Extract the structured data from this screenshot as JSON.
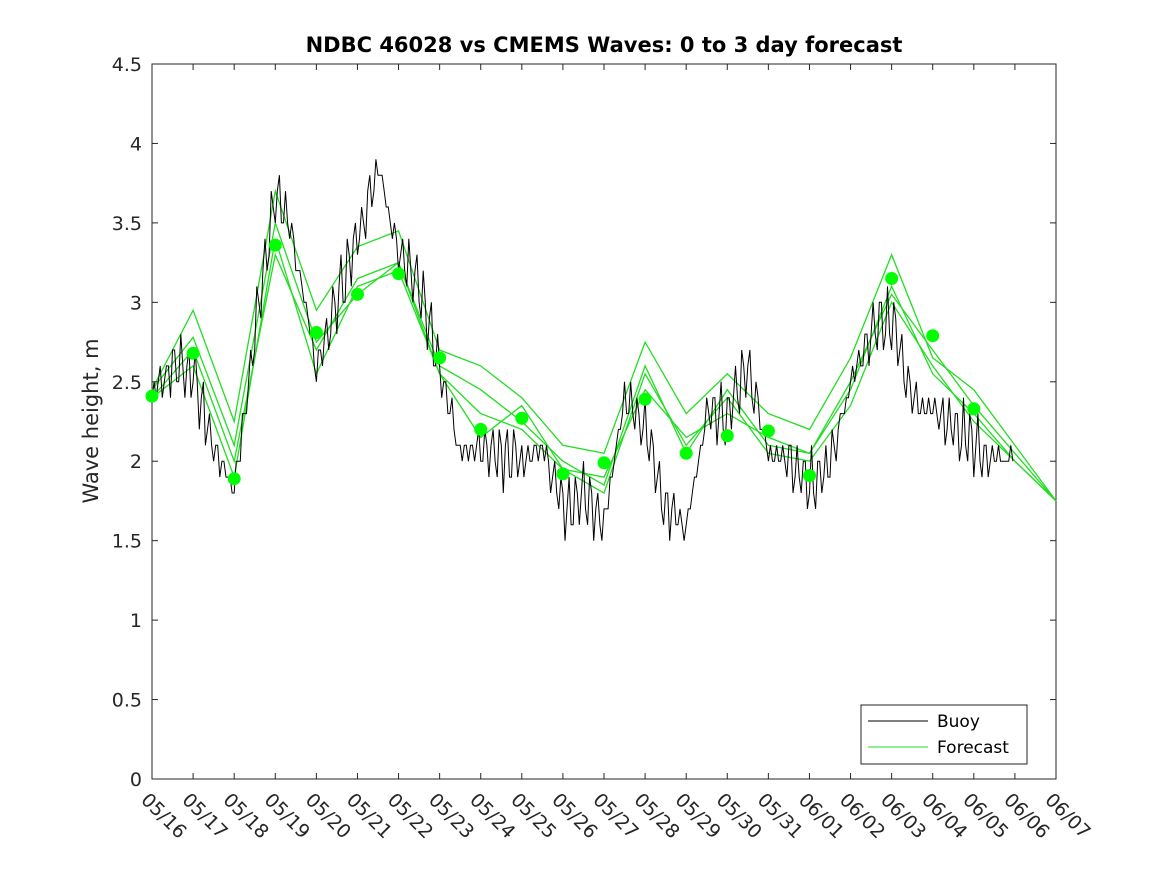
{
  "chart_data": {
    "type": "line",
    "title": "NDBC 46028 vs CMEMS Waves: 0 to 3 day forecast",
    "xlabel": "",
    "ylabel": "Wave height, m",
    "ylim": [
      0,
      4.5
    ],
    "yticks": [
      0,
      0.5,
      1,
      1.5,
      2,
      2.5,
      3,
      3.5,
      4,
      4.5
    ],
    "ytick_labels": [
      "0",
      "0.5",
      "1",
      "1.5",
      "2",
      "2.5",
      "3",
      "3.5",
      "4",
      "4.5"
    ],
    "xlim_days": [
      0,
      22
    ],
    "xtick_labels": [
      "05/16",
      "05/17",
      "05/18",
      "05/19",
      "05/20",
      "05/21",
      "05/22",
      "05/23",
      "05/24",
      "05/25",
      "05/26",
      "05/27",
      "05/28",
      "05/29",
      "05/30",
      "05/31",
      "06/01",
      "06/02",
      "06/03",
      "06/04",
      "06/05",
      "06/06",
      "06/07"
    ],
    "legend": {
      "position": "bottom-right",
      "entries": [
        {
          "name": "Buoy",
          "color": "#000000"
        },
        {
          "name": "Forecast",
          "color": "#00ff00"
        }
      ]
    },
    "colors": {
      "buoy": "#000000",
      "forecast": "#00ff00",
      "forecast_line": "#22dd22"
    },
    "buoy": {
      "name": "Buoy",
      "x": [
        0,
        0.5,
        1,
        1.5,
        2,
        2.5,
        3,
        3.25,
        3.5,
        4,
        4.5,
        5,
        5.5,
        6,
        6.5,
        7,
        7.5,
        8,
        8.5,
        9,
        9.5,
        10,
        10.5,
        11,
        11.5,
        12,
        12.5,
        13,
        13.5,
        14,
        14.5,
        15,
        15.5,
        16,
        16.5,
        17,
        17.5,
        18,
        18.5,
        19,
        19.5,
        20,
        20.5,
        21
      ],
      "y": [
        2.4,
        2.6,
        2.55,
        2.1,
        1.8,
        2.8,
        3.7,
        3.6,
        3.3,
        2.6,
        3.0,
        3.4,
        3.85,
        3.3,
        3.1,
        2.6,
        2.05,
        2.1,
        2.05,
        2.0,
        2.1,
        1.7,
        1.8,
        1.6,
        2.4,
        2.2,
        1.7,
        1.6,
        2.3,
        2.3,
        2.6,
        2.05,
        2.0,
        1.85,
        2.0,
        2.5,
        2.8,
        2.9,
        2.4,
        2.3,
        2.25,
        2.1,
        2.0,
        2.0
      ]
    },
    "forecast_runs": [
      {
        "name": "Forecast",
        "x": [
          0,
          1,
          2,
          3,
          4,
          5,
          6,
          7,
          8,
          9,
          10,
          11,
          12,
          13,
          14,
          15,
          16,
          17,
          18,
          19,
          20,
          21,
          22
        ],
        "y": [
          2.45,
          2.78,
          2.1,
          3.5,
          2.75,
          3.05,
          3.25,
          2.55,
          2.15,
          2.35,
          1.95,
          1.9,
          2.45,
          2.15,
          2.3,
          2.15,
          2.05,
          2.5,
          3.05,
          2.7,
          2.35,
          2.05,
          1.75
        ]
      },
      {
        "name": "Forecast",
        "x": [
          0,
          1,
          2,
          3,
          4,
          5,
          6,
          7,
          8,
          9,
          10,
          11,
          12,
          13,
          14,
          15,
          16,
          17,
          18,
          19,
          20,
          21,
          22
        ],
        "y": [
          2.45,
          2.95,
          2.25,
          3.7,
          2.95,
          3.35,
          3.45,
          2.7,
          2.6,
          2.4,
          2.1,
          2.05,
          2.75,
          2.3,
          2.55,
          2.3,
          2.2,
          2.65,
          3.3,
          2.65,
          2.45,
          2.1,
          1.75
        ]
      },
      {
        "name": "Forecast",
        "x": [
          0,
          1,
          2,
          3,
          4,
          5,
          6,
          7,
          8,
          9,
          10,
          11,
          12,
          13,
          14,
          15,
          16,
          17,
          18,
          19,
          20,
          21,
          22
        ],
        "y": [
          2.4,
          2.7,
          2.0,
          3.3,
          2.7,
          3.15,
          3.25,
          2.6,
          2.45,
          2.25,
          2.0,
          1.85,
          2.6,
          2.05,
          2.45,
          2.1,
          2.05,
          2.45,
          3.1,
          2.55,
          2.3,
          2.0,
          1.75
        ]
      },
      {
        "name": "Forecast",
        "x": [
          0,
          1,
          2,
          3,
          4,
          5,
          6,
          7,
          8,
          9,
          10,
          11,
          12,
          13,
          14,
          15,
          16,
          17,
          18,
          19,
          20,
          21,
          22
        ],
        "y": [
          2.4,
          2.6,
          1.9,
          3.4,
          2.55,
          3.1,
          3.2,
          2.55,
          2.3,
          2.2,
          1.95,
          1.8,
          2.55,
          2.1,
          2.4,
          2.05,
          2.0,
          2.35,
          3.0,
          2.6,
          2.25,
          2.0,
          1.75
        ]
      }
    ],
    "forecast_points": {
      "name": "Forecast",
      "x": [
        0,
        1,
        2,
        3,
        4,
        5,
        6,
        7,
        8,
        9,
        10,
        11,
        12,
        13,
        14,
        15,
        16,
        18,
        19,
        20
      ],
      "y": [
        2.41,
        2.68,
        1.89,
        3.36,
        2.81,
        3.05,
        3.18,
        2.65,
        2.2,
        2.27,
        1.92,
        1.99,
        2.39,
        2.05,
        2.16,
        2.19,
        1.91,
        3.15,
        2.79,
        2.33
      ]
    }
  }
}
